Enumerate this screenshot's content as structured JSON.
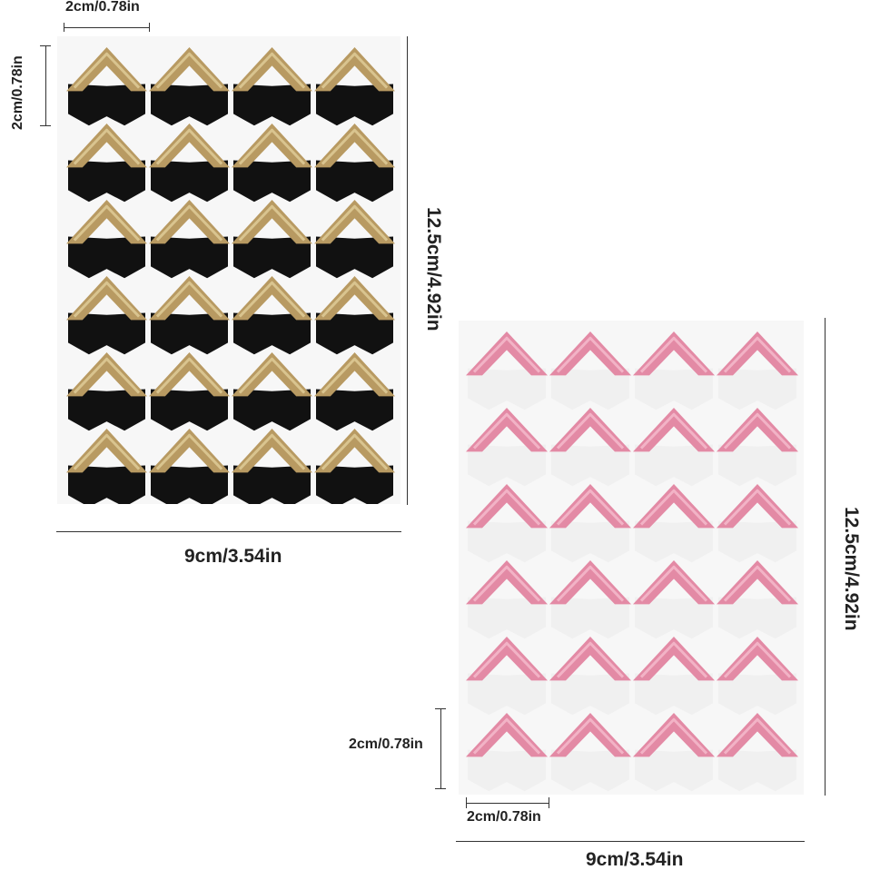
{
  "gold_sheet": {
    "rows": 6,
    "columns": 4,
    "corner_color": "#b89a62",
    "corner_highlight": "#d9c48f",
    "backing_color": "#111111",
    "width_label": "9cm/3.54in",
    "height_label": "12.5cm/4.92in",
    "corner_width_label": "2cm/0.78in",
    "corner_height_label": "2cm/0.78in"
  },
  "pink_sheet": {
    "rows": 6,
    "columns": 4,
    "corner_color": "#e38aa5",
    "corner_highlight": "#f2b3c6",
    "backing_color": "#f0f0f0",
    "width_label": "9cm/3.54in",
    "height_label": "12.5cm/4.92in",
    "corner_width_label": "2cm/0.78in",
    "corner_height_label": "2cm/0.78in"
  }
}
